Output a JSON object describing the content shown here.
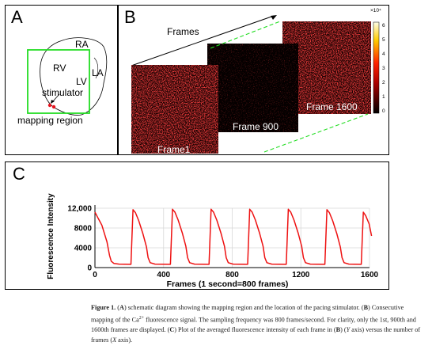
{
  "panel_a": {
    "label": "A",
    "ra": "RA",
    "rv": "RV",
    "lv": "LV",
    "la": "LA",
    "stimulator": "stimulator",
    "mapping_region": "mapping region"
  },
  "panel_b": {
    "label": "B",
    "frames_arrow_label": "Frames",
    "frame_labels": [
      "Frame1",
      "Frame 900",
      "Frame 1600"
    ],
    "colorbar_exponent": "×10⁴",
    "colorbar_ticks": [
      "6",
      "5",
      "4",
      "3",
      "2",
      "1",
      "0"
    ]
  },
  "panel_c": {
    "label": "C"
  },
  "chart_data": {
    "type": "line",
    "xlabel": "Frames (1 second=800 frames)",
    "ylabel": "Fluorescence Intensity",
    "xlim": [
      0,
      1600
    ],
    "ylim": [
      0,
      12000
    ],
    "xticks": [
      0,
      400,
      800,
      1200,
      1600
    ],
    "xtick_labels": [
      "0",
      "400",
      "800",
      "1200",
      "1600"
    ],
    "yticks": [
      0,
      4000,
      8000,
      12000
    ],
    "ytick_labels": [
      "0",
      "4000",
      "8000",
      "12,000"
    ],
    "series": [
      {
        "color": "#ee1111",
        "x": [
          0,
          15,
          40,
          70,
          85,
          95,
          110,
          140,
          210,
          222,
          236,
          255,
          280,
          300,
          310,
          322,
          350,
          440,
          452,
          466,
          485,
          510,
          530,
          540,
          552,
          580,
          665,
          677,
          691,
          710,
          735,
          755,
          765,
          777,
          805,
          890,
          902,
          916,
          935,
          960,
          980,
          990,
          1002,
          1030,
          1115,
          1127,
          1141,
          1160,
          1185,
          1205,
          1215,
          1227,
          1255,
          1340,
          1352,
          1366,
          1385,
          1410,
          1430,
          1440,
          1452,
          1480,
          1552,
          1564,
          1578,
          1598,
          1612
        ],
        "y": [
          11200,
          10200,
          8600,
          5200,
          2500,
          1300,
          850,
          700,
          650,
          11700,
          11100,
          9500,
          6800,
          4200,
          2000,
          1000,
          700,
          650,
          11800,
          11200,
          9600,
          6900,
          4300,
          2000,
          1000,
          700,
          650,
          11800,
          11200,
          9600,
          6900,
          4300,
          2000,
          1000,
          700,
          650,
          11800,
          11200,
          9600,
          6900,
          4300,
          2000,
          1000,
          700,
          650,
          11800,
          11200,
          9600,
          6900,
          4300,
          2000,
          1000,
          700,
          650,
          11700,
          11100,
          9500,
          6800,
          4200,
          2000,
          1000,
          700,
          650,
          11200,
          10500,
          8800,
          6400
        ]
      }
    ]
  },
  "caption": {
    "fig_label": "Figure 1.",
    "part1": " (",
    "a": "A",
    "part2": ") schematic diagram showing the mapping region and the location of the pacing stimulator. (",
    "b": "B",
    "part3": ") Consecutive mapping of the Ca",
    "sup": "2+",
    "part4": " fluorescence signal. The sampling frequency was 800 frames/second. For clarity, only the 1st, 900th and 1600th frames are displayed. (",
    "c": "C",
    "part5": ") Plot of the averaged fluorescence intensity of each frame in (",
    "b2": "B",
    "part6": ") (",
    "yaxis": "Y",
    "part7": " axis) versus the number of frames (",
    "xaxis": "X",
    "part8": " axis)."
  }
}
